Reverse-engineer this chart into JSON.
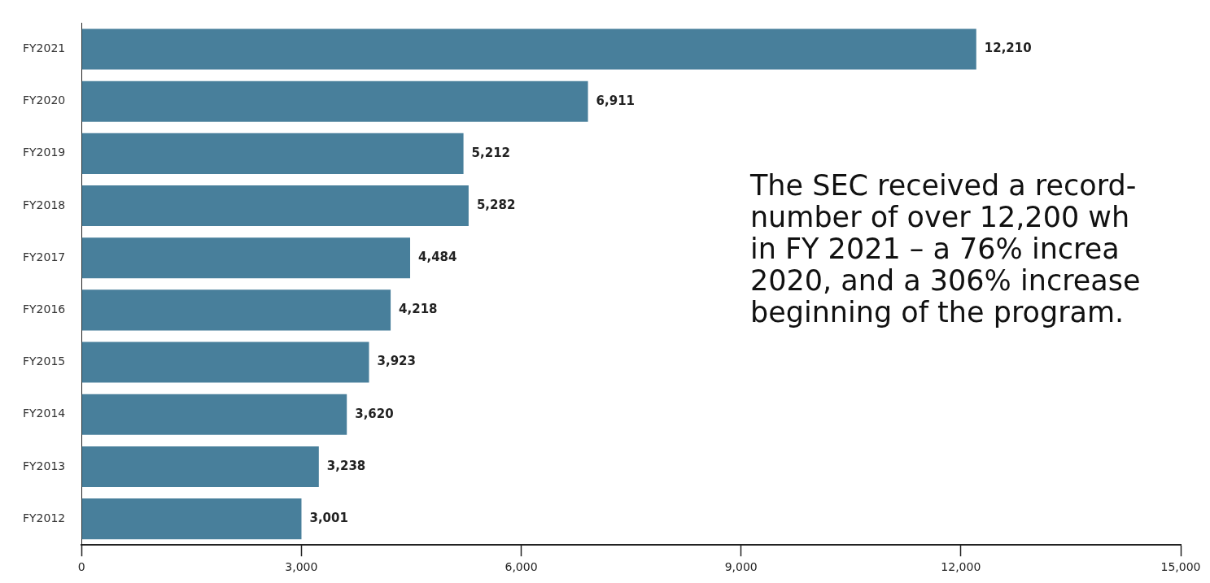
{
  "chart_data": {
    "type": "bar",
    "orientation": "horizontal",
    "categories": [
      "FY2021",
      "FY2020",
      "FY2019",
      "FY2018",
      "FY2017",
      "FY2016",
      "FY2015",
      "FY2014",
      "FY2013",
      "FY2012"
    ],
    "values": [
      12210,
      6911,
      5212,
      5282,
      4484,
      4218,
      3923,
      3620,
      3238,
      3001
    ],
    "color": "#487f9b",
    "xlim": [
      0,
      15000
    ],
    "xticks": [
      0,
      {
        "value": 3000,
        "label": "3,000"
      },
      {
        "value": 6000,
        "label": "6,000"
      },
      {
        "value": 9000,
        "label": "9,000"
      },
      {
        "value": 12000,
        "label": "12,000"
      },
      {
        "value": 15000,
        "label": "15,000"
      }
    ],
    "value_labels": [
      "12,210",
      "6,911",
      "5,212",
      "5,282",
      "4,484",
      "4,218",
      "3,923",
      "3,620",
      "3,238",
      "3,001"
    ],
    "annotations": [
      "The SEC received a record-\nnumber of over 12,200 wh\nin FY 2021 – a 76% increa\n2020, and a 306% increase\nbeginning of the program."
    ],
    "grid": false,
    "legend": false
  }
}
